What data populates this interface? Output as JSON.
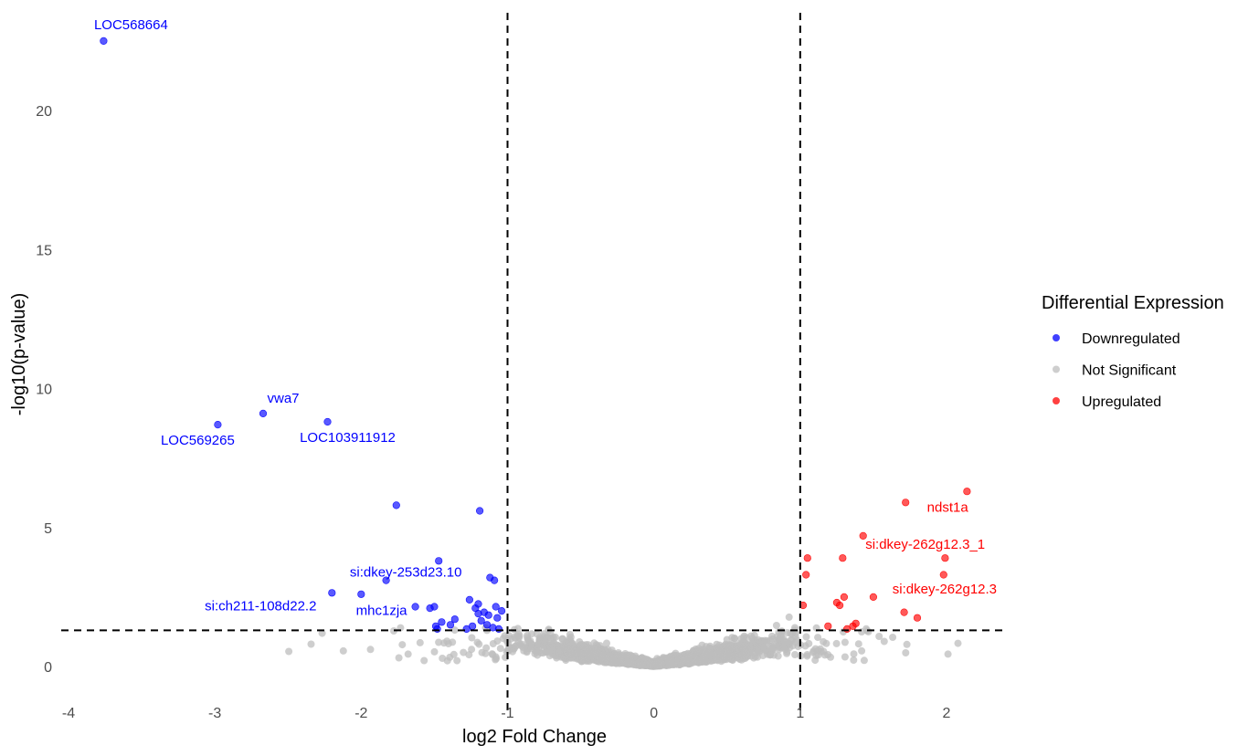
{
  "chart_data": {
    "type": "scatter",
    "title": "",
    "xlabel": "log2 Fold Change",
    "ylabel": "-log10(p-value)",
    "xlim": [
      -4.0,
      2.4
    ],
    "ylim": [
      -1.4,
      23.6
    ],
    "x_ticks": [
      -4,
      -3,
      -2,
      -1,
      0,
      1,
      2
    ],
    "y_ticks": [
      0,
      5,
      10,
      15,
      20
    ],
    "grid": false,
    "thresholds": {
      "log2fc": [
        -1,
        1
      ],
      "neglog10p": 1.3
    },
    "legend": {
      "title": "Differential Expression",
      "position": "right",
      "entries": [
        {
          "label": "Downregulated",
          "color": "#0000ff"
        },
        {
          "label": "Not Significant",
          "color": "#bebebe"
        },
        {
          "label": "Upregulated",
          "color": "#ff0000"
        }
      ]
    },
    "series": [
      {
        "name": "Downregulated",
        "color": "#0000ff",
        "points": [
          [
            -3.76,
            22.5
          ],
          [
            -2.67,
            9.1
          ],
          [
            -2.98,
            8.7
          ],
          [
            -2.23,
            8.8
          ],
          [
            -1.76,
            5.8
          ],
          [
            -1.19,
            5.6
          ],
          [
            -1.47,
            3.8
          ],
          [
            -1.83,
            3.1
          ],
          [
            -1.12,
            3.2
          ],
          [
            -1.09,
            3.1
          ],
          [
            -2.2,
            2.65
          ],
          [
            -2.0,
            2.6
          ],
          [
            -1.26,
            2.4
          ],
          [
            -1.2,
            2.25
          ],
          [
            -1.22,
            2.1
          ],
          [
            -1.16,
            1.95
          ],
          [
            -1.08,
            2.15
          ],
          [
            -1.04,
            2.0
          ],
          [
            -1.13,
            1.85
          ],
          [
            -1.07,
            1.75
          ],
          [
            -1.2,
            1.9
          ],
          [
            -1.18,
            1.65
          ],
          [
            -1.14,
            1.5
          ],
          [
            -1.24,
            1.45
          ],
          [
            -1.45,
            1.6
          ],
          [
            -1.39,
            1.5
          ],
          [
            -1.49,
            1.45
          ],
          [
            -1.48,
            1.35
          ],
          [
            -1.36,
            1.7
          ],
          [
            -1.5,
            2.15
          ],
          [
            -1.63,
            2.15
          ],
          [
            -1.53,
            2.1
          ],
          [
            -1.1,
            1.4
          ],
          [
            -1.06,
            1.35
          ],
          [
            -1.28,
            1.35
          ]
        ]
      },
      {
        "name": "Upregulated",
        "color": "#ff0000",
        "points": [
          [
            2.14,
            6.3
          ],
          [
            1.72,
            5.9
          ],
          [
            1.43,
            4.7
          ],
          [
            1.99,
            3.9
          ],
          [
            1.29,
            3.9
          ],
          [
            1.05,
            3.9
          ],
          [
            1.04,
            3.3
          ],
          [
            1.98,
            3.3
          ],
          [
            1.5,
            2.5
          ],
          [
            1.3,
            2.5
          ],
          [
            1.25,
            2.3
          ],
          [
            1.27,
            2.2
          ],
          [
            1.02,
            2.2
          ],
          [
            1.71,
            1.95
          ],
          [
            1.8,
            1.75
          ],
          [
            1.38,
            1.55
          ],
          [
            1.36,
            1.45
          ],
          [
            1.19,
            1.45
          ],
          [
            1.32,
            1.35
          ]
        ]
      },
      {
        "name": "Not Significant",
        "color": "#bebebe",
        "points": [],
        "summary": "several thousand genes with |log2FC| mostly below 1, -log10(p) below about 2.8, forming a V-shaped cloud centred at (0, 0); scattered outliers out to x about -2.9 and x about 2.1"
      }
    ],
    "annotations": [
      {
        "text": "LOC568664",
        "x": -3.76,
        "y": 22.5,
        "color": "#0000ff"
      },
      {
        "text": "vwa7",
        "x": -2.67,
        "y": 9.1,
        "color": "#0000ff"
      },
      {
        "text": "LOC569265",
        "x": -2.98,
        "y": 8.7,
        "color": "#0000ff"
      },
      {
        "text": "LOC103911912",
        "x": -2.23,
        "y": 8.8,
        "color": "#0000ff"
      },
      {
        "text": "si:dkey-253d23.10",
        "x": -1.47,
        "y": 3.8,
        "color": "#0000ff"
      },
      {
        "text": "si:ch211-108d22.2",
        "x": -2.2,
        "y": 2.65,
        "color": "#0000ff"
      },
      {
        "text": "mhc1zja",
        "x": -1.83,
        "y": 3.1,
        "color": "#0000ff"
      },
      {
        "text": "ndst1a",
        "x": 1.72,
        "y": 5.9,
        "color": "#ff0000"
      },
      {
        "text": "si:dkey-262g12.3_1",
        "x": 1.43,
        "y": 4.7,
        "color": "#ff0000"
      },
      {
        "text": "si:dkey-262g12.3",
        "x": 1.5,
        "y": 2.5,
        "color": "#ff0000"
      }
    ]
  }
}
